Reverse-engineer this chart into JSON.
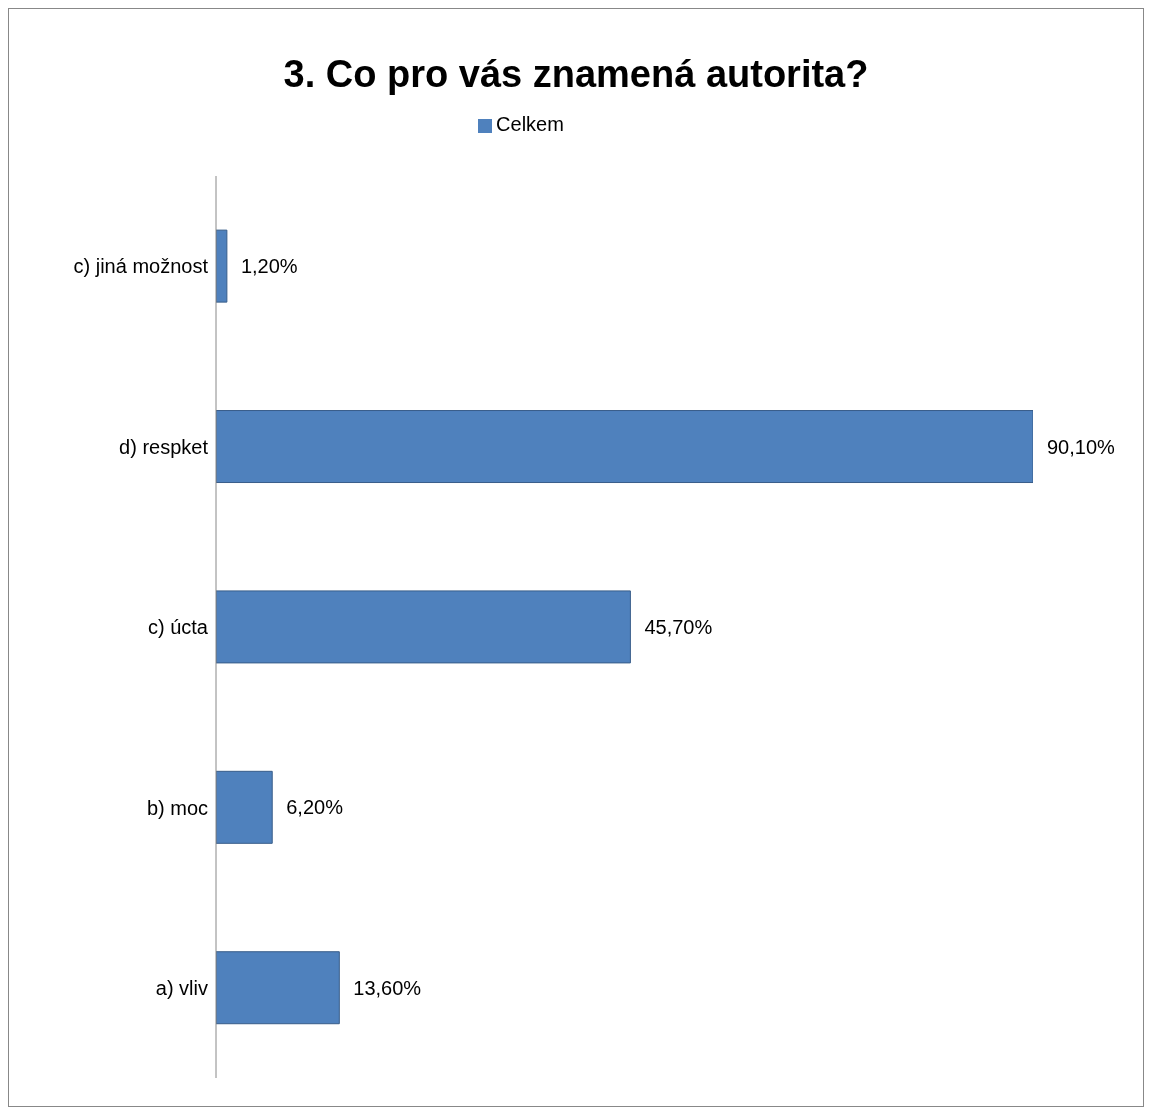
{
  "chart_data": {
    "type": "bar",
    "orientation": "horizontal",
    "title": "3. Co pro vás znamená autorita?",
    "categories": [
      "c) jiná možnost",
      "d) respket",
      "c) úcta",
      "b) moc",
      "a) vliv"
    ],
    "series": [
      {
        "name": "Celkem",
        "color": "#4f81bd",
        "values": [
          1.2,
          90.1,
          45.7,
          6.2,
          13.6
        ],
        "value_labels": [
          "1,20%",
          "90,10%",
          "45,70%",
          "6,20%",
          "13,60%"
        ]
      }
    ],
    "legend": "top",
    "grid": false
  }
}
